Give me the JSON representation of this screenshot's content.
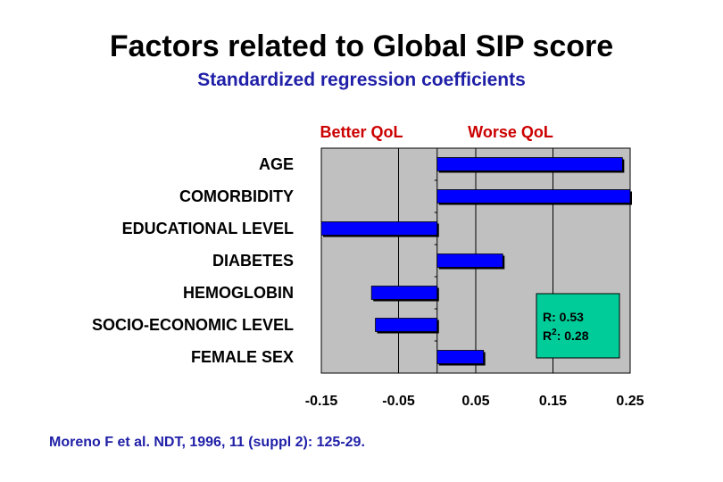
{
  "title": "Factors related to Global SIP score",
  "subtitle": "Standardized regression coefficients",
  "citation": "Moreno F et al. NDT, 1996, 11 (suppl 2): 125-29.",
  "colors": {
    "bar": "#0000ff",
    "plot_background": "#c0c0c0",
    "stats_box": "#00cc99",
    "direction_label": "#cc0000",
    "subtitle": "#1f1fa8"
  },
  "chart_data": {
    "type": "bar",
    "orientation": "horizontal",
    "categories": [
      "AGE",
      "COMORBIDITY",
      "EDUCATIONAL LEVEL",
      "DIABETES",
      "HEMOGLOBIN",
      "SOCIO-ECONOMIC LEVEL",
      "FEMALE SEX"
    ],
    "values": [
      0.24,
      0.25,
      -0.15,
      0.085,
      -0.085,
      -0.08,
      0.06
    ],
    "xlim": [
      -0.15,
      0.25
    ],
    "xticks": [
      -0.15,
      -0.05,
      0.05,
      0.15,
      0.25
    ],
    "xtick_labels": [
      "-0.15",
      "-0.05",
      "0.05",
      "0.15",
      "0.25"
    ],
    "zero_line": 0,
    "grid": true,
    "direction_labels": {
      "left": "Better QoL",
      "right": "Worse QoL"
    },
    "annotation": {
      "r": "R: 0.53",
      "r2_prefix": "R",
      "r2_sup": "2",
      "r2_suffix": ": 0.28"
    }
  }
}
